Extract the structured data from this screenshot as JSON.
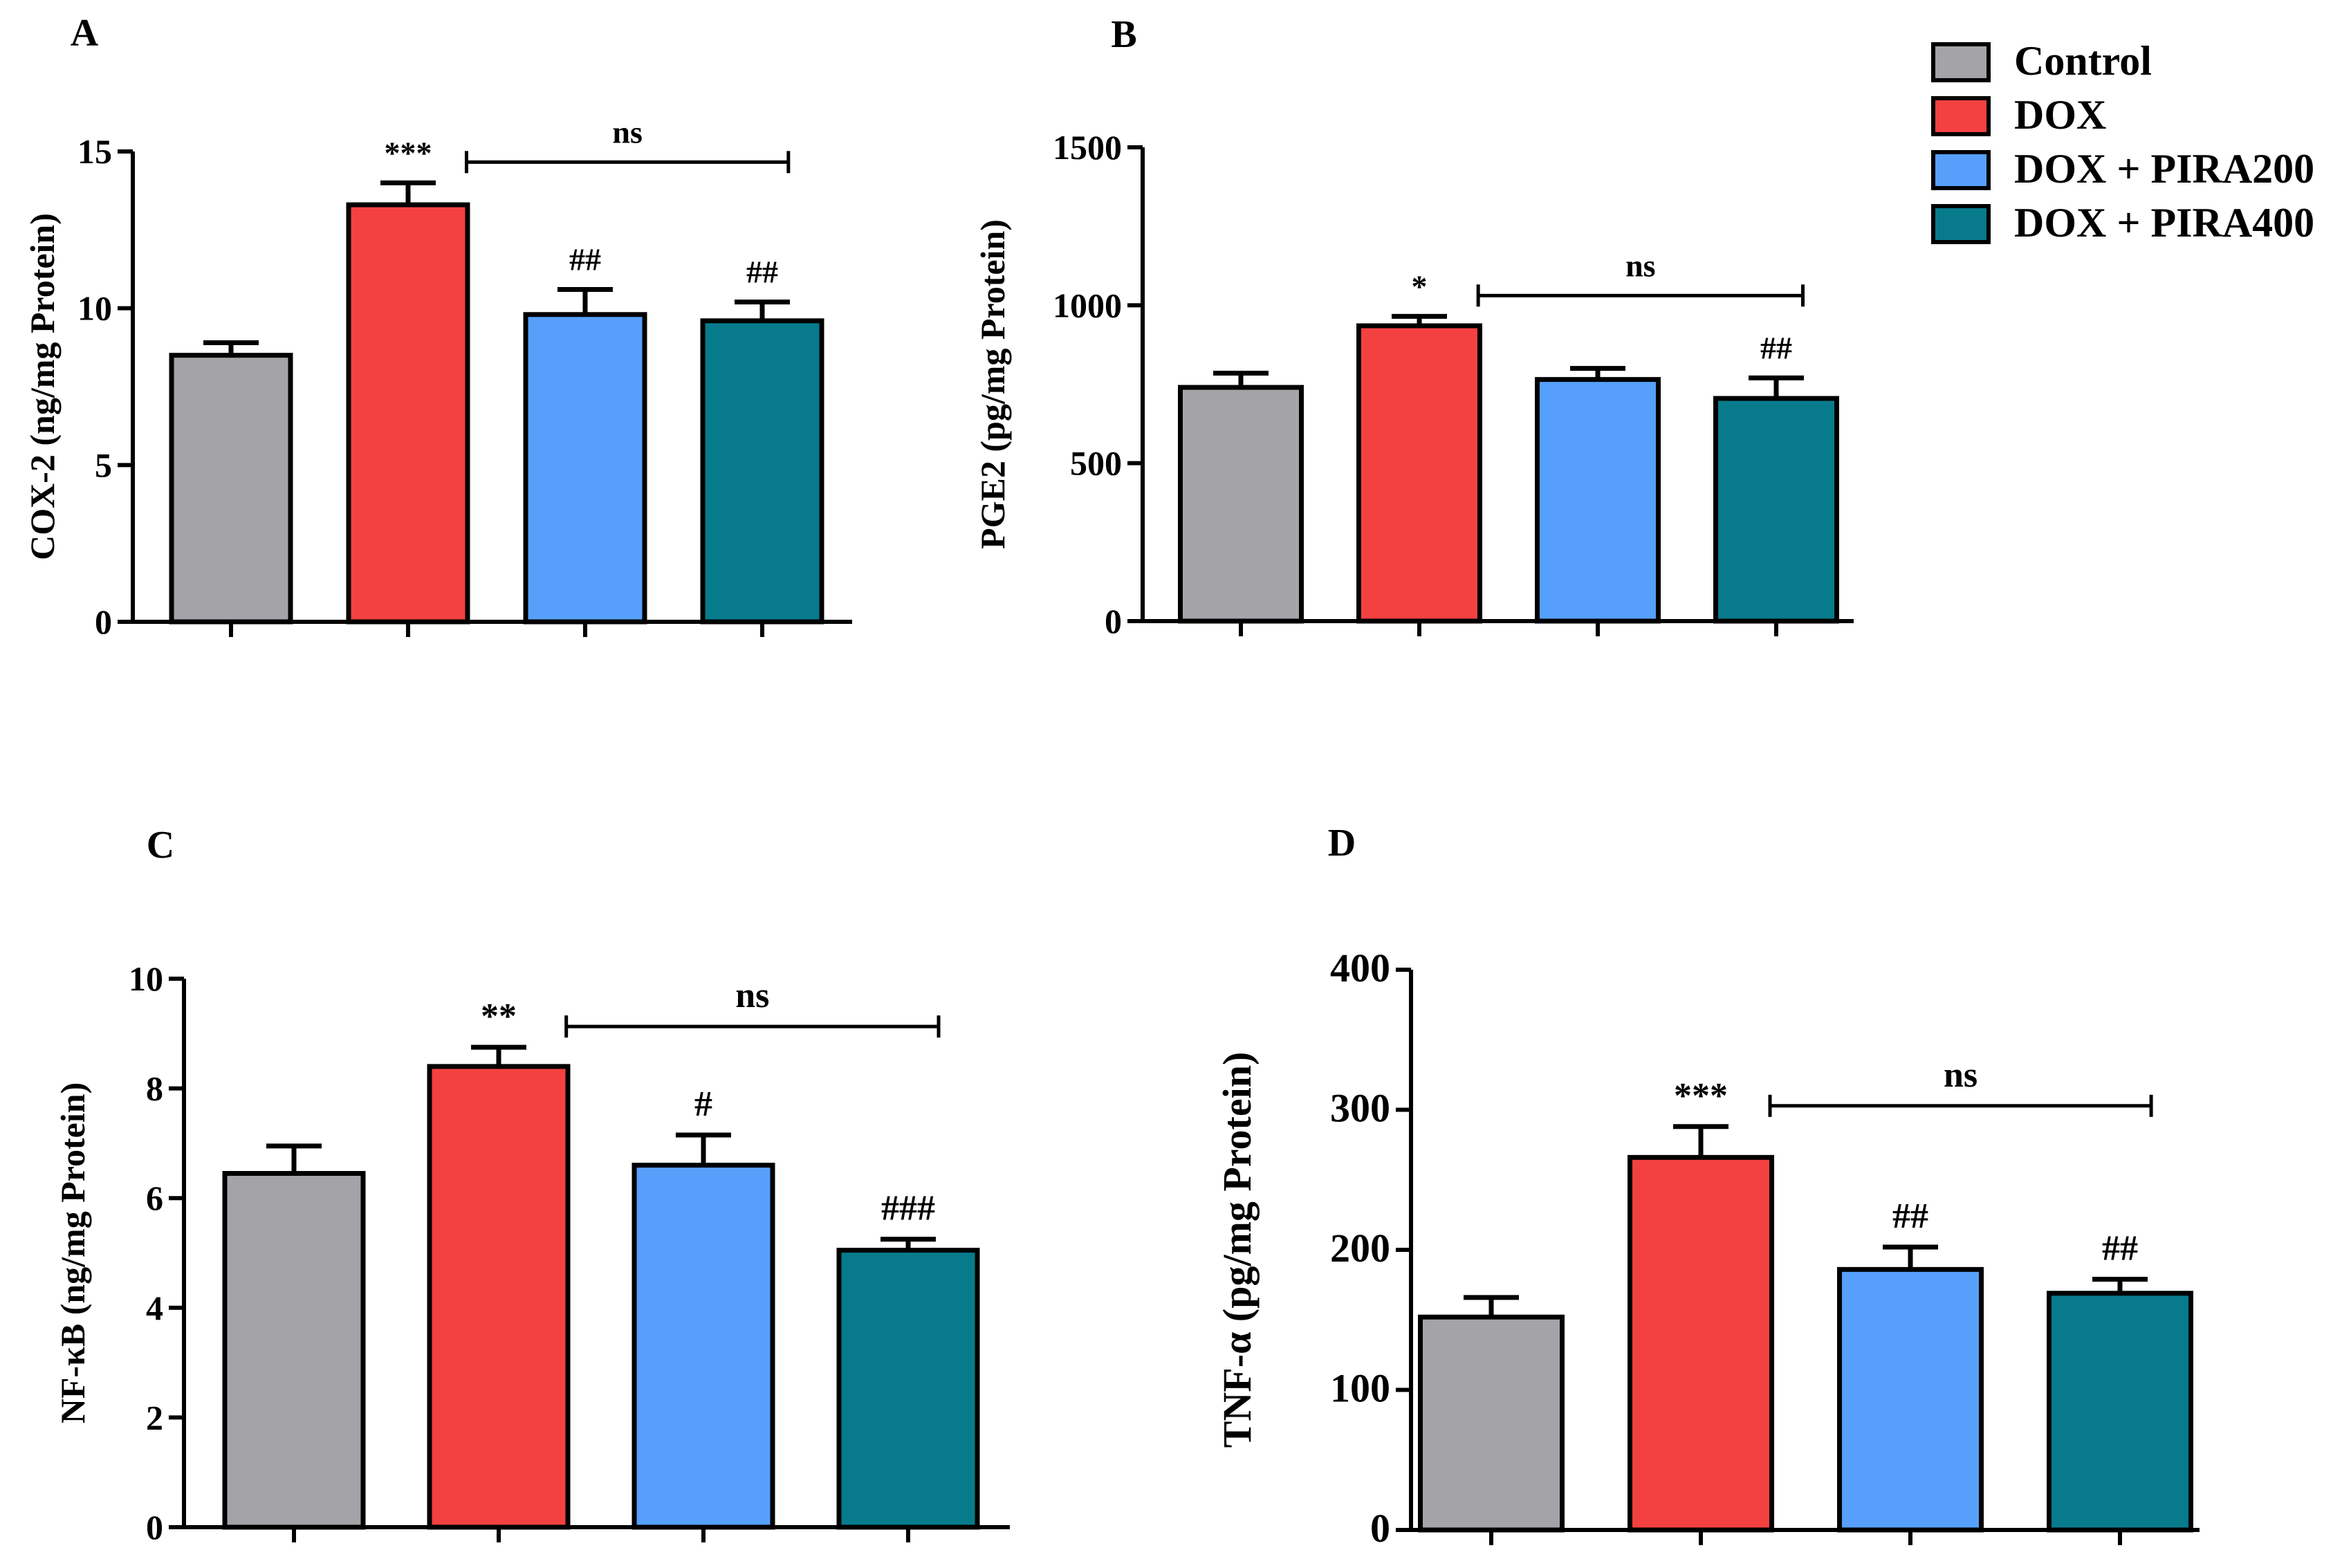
{
  "legend": {
    "items": [
      {
        "label": "Control",
        "color": "#a3a3a8"
      },
      {
        "label": "DOX",
        "color": "#f34141"
      },
      {
        "label": "DOX + PIRA200",
        "color": "#56a0fb"
      },
      {
        "label": "DOX + PIRA400",
        "color": "#077b8c"
      }
    ]
  },
  "chart_data": [
    {
      "type": "bar",
      "panel": "A",
      "ylabel": "COX-2 (ng/mg Protein)",
      "ylim": [
        0,
        15
      ],
      "yticks": [
        "0",
        "5",
        "10",
        "15"
      ],
      "categories": [
        "Control",
        "DOX",
        "DOX + PIRA200",
        "DOX + PIRA400"
      ],
      "values": [
        8.5,
        13.3,
        9.8,
        9.6
      ],
      "errors": [
        0.4,
        0.7,
        0.8,
        0.6
      ],
      "annotations": [
        "",
        "***",
        "##",
        "##"
      ],
      "bracket_label": "ns"
    },
    {
      "type": "bar",
      "panel": "B",
      "ylabel": "PGE2 (pg/mg Protein)",
      "ylim": [
        0,
        1500
      ],
      "yticks": [
        "0",
        "500",
        "1000",
        "1500"
      ],
      "categories": [
        "Control",
        "DOX",
        "DOX + PIRA200",
        "DOX + PIRA400"
      ],
      "values": [
        740,
        935,
        765,
        705
      ],
      "errors": [
        45,
        30,
        35,
        65
      ],
      "annotations": [
        "",
        "*",
        "",
        "##"
      ],
      "bracket_label": "ns"
    },
    {
      "type": "bar",
      "panel": "C",
      "ylabel": "NF-κB (ng/mg Protein)",
      "ylim": [
        0,
        10
      ],
      "yticks": [
        "0",
        "2",
        "4",
        "6",
        "8",
        "10"
      ],
      "categories": [
        "Control",
        "DOX",
        "DOX + PIRA200",
        "DOX + PIRA400"
      ],
      "values": [
        6.45,
        8.4,
        6.6,
        5.05
      ],
      "errors": [
        0.5,
        0.35,
        0.55,
        0.2
      ],
      "annotations": [
        "",
        "**",
        "#",
        "###"
      ],
      "bracket_label": "ns"
    },
    {
      "type": "bar",
      "panel": "D",
      "ylabel": "TNF-α (pg/mg Protein)",
      "ylim": [
        0,
        400
      ],
      "yticks": [
        "0",
        "100",
        "200",
        "300",
        "400"
      ],
      "categories": [
        "Control",
        "DOX",
        "DOX + PIRA200",
        "DOX + PIRA400"
      ],
      "values": [
        152,
        266,
        186,
        169
      ],
      "errors": [
        14,
        22,
        16,
        10
      ],
      "annotations": [
        "",
        "***",
        "##",
        "##"
      ],
      "bracket_label": "ns"
    }
  ]
}
